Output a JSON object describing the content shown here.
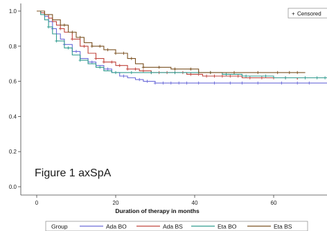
{
  "chart_data": {
    "type": "line",
    "xlabel": "Duration of therapy in months",
    "ylabel": "",
    "xlim": [
      -3,
      74
    ],
    "ylim": [
      0,
      1.0
    ],
    "x_ticks": [
      0,
      20,
      40,
      60
    ],
    "y_ticks": [
      0.0,
      0.2,
      0.4,
      0.6,
      0.8,
      1.0
    ],
    "y_tick_labels": [
      "0.0",
      "0.2",
      "0.4",
      "0.6",
      "0.8",
      "1.0"
    ],
    "annotation": "Figure 1 axSpA",
    "censored_label": "Censored",
    "censored_symbol": "+",
    "legend_title": "Group",
    "legend_position": "bottom",
    "series": [
      {
        "name": "Ada BO",
        "color": "#6a6ad8",
        "points": [
          [
            0,
            1.0
          ],
          [
            1,
            0.99
          ],
          [
            2,
            0.97
          ],
          [
            3,
            0.94
          ],
          [
            4,
            0.9
          ],
          [
            5,
            0.87
          ],
          [
            6,
            0.84
          ],
          [
            7,
            0.81
          ],
          [
            9,
            0.77
          ],
          [
            11,
            0.73
          ],
          [
            13,
            0.71
          ],
          [
            15,
            0.69
          ],
          [
            17,
            0.67
          ],
          [
            19,
            0.65
          ],
          [
            21,
            0.63
          ],
          [
            23,
            0.62
          ],
          [
            25,
            0.61
          ],
          [
            27,
            0.6
          ],
          [
            30,
            0.59
          ],
          [
            36,
            0.59
          ],
          [
            48,
            0.59
          ],
          [
            74,
            0.59
          ]
        ],
        "censored_x": [
          4,
          7,
          10,
          14,
          18,
          22,
          26,
          28,
          30,
          32,
          34,
          36,
          38,
          41,
          45,
          49,
          52,
          56,
          62,
          66,
          69
        ]
      },
      {
        "name": "Ada BS",
        "color": "#c0443c",
        "points": [
          [
            0,
            1.0
          ],
          [
            1,
            0.99
          ],
          [
            2,
            0.98
          ],
          [
            3,
            0.96
          ],
          [
            4,
            0.94
          ],
          [
            5,
            0.92
          ],
          [
            6,
            0.9
          ],
          [
            7,
            0.88
          ],
          [
            9,
            0.84
          ],
          [
            11,
            0.8
          ],
          [
            13,
            0.76
          ],
          [
            15,
            0.73
          ],
          [
            17,
            0.71
          ],
          [
            20,
            0.69
          ],
          [
            23,
            0.67
          ],
          [
            26,
            0.66
          ],
          [
            29,
            0.65
          ],
          [
            33,
            0.65
          ],
          [
            38,
            0.64
          ],
          [
            42,
            0.63
          ],
          [
            46,
            0.63
          ],
          [
            52,
            0.62
          ],
          [
            58,
            0.62
          ],
          [
            66,
            0.61
          ]
        ],
        "censored_x": [
          6,
          9,
          12,
          15,
          17,
          19,
          21,
          23,
          25,
          27,
          29,
          31,
          33,
          35,
          37,
          39,
          41,
          43,
          45,
          47,
          49,
          51,
          54,
          57,
          60,
          63
        ]
      },
      {
        "name": "Eta BO",
        "color": "#2e9a8e",
        "points": [
          [
            0,
            1.0
          ],
          [
            1,
            0.98
          ],
          [
            2,
            0.95
          ],
          [
            3,
            0.91
          ],
          [
            4,
            0.87
          ],
          [
            5,
            0.83
          ],
          [
            7,
            0.79
          ],
          [
            9,
            0.75
          ],
          [
            11,
            0.72
          ],
          [
            13,
            0.7
          ],
          [
            15,
            0.68
          ],
          [
            17,
            0.66
          ],
          [
            19,
            0.65
          ],
          [
            22,
            0.65
          ],
          [
            27,
            0.65
          ],
          [
            33,
            0.65
          ],
          [
            40,
            0.65
          ],
          [
            47,
            0.64
          ],
          [
            52,
            0.63
          ],
          [
            60,
            0.62
          ],
          [
            68,
            0.62
          ],
          [
            74,
            0.62
          ]
        ],
        "censored_x": [
          3,
          5,
          8,
          11,
          16,
          20,
          24,
          29,
          35,
          41,
          44,
          48,
          53,
          58,
          63,
          68,
          71,
          73
        ]
      },
      {
        "name": "Eta BS",
        "color": "#7a5020",
        "points": [
          [
            0,
            1.0
          ],
          [
            2,
            0.98
          ],
          [
            4,
            0.95
          ],
          [
            6,
            0.92
          ],
          [
            8,
            0.88
          ],
          [
            10,
            0.85
          ],
          [
            12,
            0.82
          ],
          [
            14,
            0.8
          ],
          [
            17,
            0.78
          ],
          [
            20,
            0.76
          ],
          [
            23,
            0.73
          ],
          [
            25,
            0.7
          ],
          [
            27,
            0.68
          ],
          [
            31,
            0.68
          ],
          [
            34,
            0.67
          ],
          [
            38,
            0.67
          ],
          [
            41,
            0.65
          ],
          [
            46,
            0.65
          ],
          [
            52,
            0.65
          ],
          [
            59,
            0.65
          ],
          [
            68,
            0.65
          ]
        ],
        "censored_x": [
          7,
          9,
          11,
          14,
          16,
          18,
          20,
          22,
          24,
          27,
          31,
          35,
          39,
          44,
          50,
          56,
          61,
          64,
          66
        ]
      }
    ]
  }
}
